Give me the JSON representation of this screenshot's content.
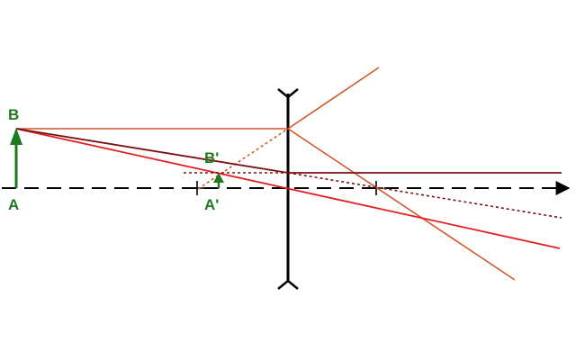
{
  "diagram": {
    "type": "optics-ray-diagram",
    "lens_type": "diverging",
    "labels": {
      "object_top": "B",
      "object_base": "A",
      "image_top": "B'",
      "image_base": "A'"
    },
    "colors": {
      "object": "#1e7a1e",
      "lens": "#000000",
      "axis": "#000000",
      "ray_parallel": "#d2572a",
      "ray_center": "#e02020",
      "ray_focal": "#7a1010"
    }
  }
}
